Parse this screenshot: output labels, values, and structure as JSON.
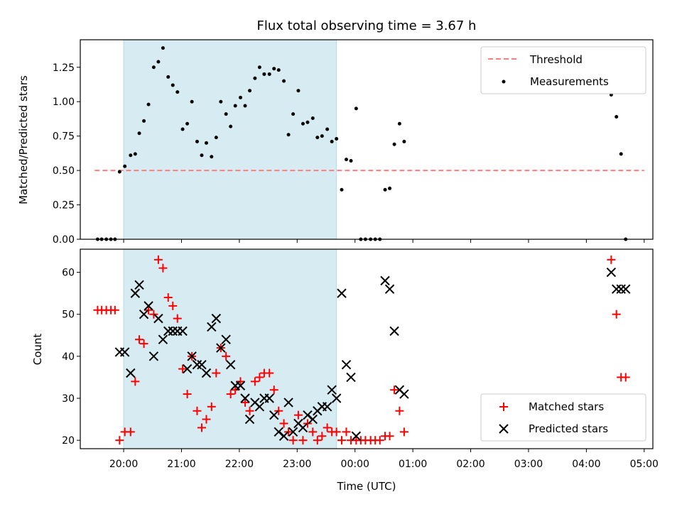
{
  "title": "Flux total observing time = 3.67 h",
  "colors": {
    "shade": "#add8e6",
    "threshold": "#ff7f7f",
    "matched": "#ff0000",
    "predicted": "#000000",
    "measure": "#000000"
  },
  "chart_data": [
    {
      "type": "scatter",
      "xlabel": "",
      "ylabel": "Matched/Predicted stars",
      "xlim": [
        19.25,
        29.15
      ],
      "ylim": [
        0,
        1.45
      ],
      "yticks": [
        "0.00",
        "0.25",
        "0.50",
        "0.75",
        "1.00",
        "1.25"
      ],
      "shaded_span": [
        20.0,
        23.68
      ],
      "threshold": {
        "label": "Threshold",
        "y": 0.5,
        "x": [
          19.5,
          29.0
        ]
      },
      "legend": [
        "Threshold",
        "Measurements"
      ],
      "series": [
        {
          "name": "Measurements",
          "marker": "dot",
          "points": [
            [
              19.55,
              0
            ],
            [
              19.62,
              0
            ],
            [
              19.7,
              0
            ],
            [
              19.78,
              0
            ],
            [
              19.85,
              0
            ],
            [
              19.93,
              0.49
            ],
            [
              20.02,
              0.53
            ],
            [
              20.12,
              0.61
            ],
            [
              20.2,
              0.62
            ],
            [
              20.27,
              0.77
            ],
            [
              20.35,
              0.86
            ],
            [
              20.43,
              0.98
            ],
            [
              20.52,
              1.25
            ],
            [
              20.6,
              1.29
            ],
            [
              20.68,
              1.39
            ],
            [
              20.77,
              1.18
            ],
            [
              20.85,
              1.12
            ],
            [
              20.93,
              1.07
            ],
            [
              21.02,
              0.8
            ],
            [
              21.1,
              0.84
            ],
            [
              21.18,
              1.0
            ],
            [
              21.27,
              0.71
            ],
            [
              21.35,
              0.61
            ],
            [
              21.43,
              0.7
            ],
            [
              21.52,
              0.6
            ],
            [
              21.6,
              0.74
            ],
            [
              21.68,
              1.0
            ],
            [
              21.77,
              0.91
            ],
            [
              21.85,
              0.82
            ],
            [
              21.93,
              0.97
            ],
            [
              22.02,
              1.03
            ],
            [
              22.1,
              0.97
            ],
            [
              22.18,
              1.08
            ],
            [
              22.27,
              1.17
            ],
            [
              22.35,
              1.25
            ],
            [
              22.43,
              1.2
            ],
            [
              22.52,
              1.2
            ],
            [
              22.6,
              1.24
            ],
            [
              22.68,
              1.23
            ],
            [
              22.77,
              1.15
            ],
            [
              22.85,
              0.76
            ],
            [
              22.93,
              0.91
            ],
            [
              23.02,
              1.08
            ],
            [
              23.1,
              0.84
            ],
            [
              23.18,
              0.85
            ],
            [
              23.27,
              0.88
            ],
            [
              23.35,
              0.74
            ],
            [
              23.43,
              0.75
            ],
            [
              23.52,
              0.8
            ],
            [
              23.6,
              0.71
            ],
            [
              23.68,
              0.73
            ],
            [
              23.77,
              0.36
            ],
            [
              23.85,
              0.58
            ],
            [
              23.93,
              0.57
            ],
            [
              24.02,
              0.95
            ],
            [
              24.1,
              0
            ],
            [
              24.18,
              0
            ],
            [
              24.27,
              0
            ],
            [
              24.35,
              0
            ],
            [
              24.43,
              0
            ],
            [
              24.52,
              0.36
            ],
            [
              24.6,
              0.37
            ],
            [
              24.68,
              0.69
            ],
            [
              24.77,
              0.84
            ],
            [
              24.85,
              0.71
            ],
            [
              28.43,
              1.05
            ],
            [
              28.52,
              0.89
            ],
            [
              28.6,
              0.62
            ],
            [
              28.68,
              0
            ]
          ]
        }
      ]
    },
    {
      "type": "scatter",
      "xlabel": "Time (UTC)",
      "ylabel": "Count",
      "xlim": [
        19.25,
        29.15
      ],
      "ylim": [
        18.0,
        65.5
      ],
      "yticks": [
        "20",
        "30",
        "40",
        "50",
        "60"
      ],
      "xticks": [
        "20:00",
        "21:00",
        "22:00",
        "23:00",
        "00:00",
        "01:00",
        "02:00",
        "03:00",
        "04:00",
        "05:00"
      ],
      "shaded_span": [
        20.0,
        23.68
      ],
      "legend": [
        "Matched stars",
        "Predicted stars"
      ],
      "series": [
        {
          "name": "Matched stars",
          "marker": "plus",
          "points": [
            [
              19.55,
              51
            ],
            [
              19.62,
              51
            ],
            [
              19.7,
              51
            ],
            [
              19.78,
              51
            ],
            [
              19.85,
              51
            ],
            [
              19.93,
              20
            ],
            [
              20.02,
              22
            ],
            [
              20.12,
              22
            ],
            [
              20.2,
              34
            ],
            [
              20.27,
              44
            ],
            [
              20.35,
              43
            ],
            [
              20.43,
              51
            ],
            [
              20.52,
              50
            ],
            [
              20.6,
              63
            ],
            [
              20.68,
              61
            ],
            [
              20.77,
              54
            ],
            [
              20.85,
              52
            ],
            [
              20.93,
              49
            ],
            [
              21.02,
              37
            ],
            [
              21.1,
              31
            ],
            [
              21.18,
              40
            ],
            [
              21.27,
              27
            ],
            [
              21.35,
              23
            ],
            [
              21.43,
              25
            ],
            [
              21.52,
              28
            ],
            [
              21.6,
              36
            ],
            [
              21.68,
              42
            ],
            [
              21.77,
              40
            ],
            [
              21.85,
              31
            ],
            [
              21.93,
              32
            ],
            [
              22.02,
              34
            ],
            [
              22.1,
              29
            ],
            [
              22.18,
              27
            ],
            [
              22.27,
              34
            ],
            [
              22.35,
              35
            ],
            [
              22.43,
              36
            ],
            [
              22.52,
              36
            ],
            [
              22.6,
              32
            ],
            [
              22.68,
              27
            ],
            [
              22.77,
              24
            ],
            [
              22.85,
              22
            ],
            [
              22.93,
              20
            ],
            [
              23.02,
              26
            ],
            [
              23.1,
              20
            ],
            [
              23.18,
              24
            ],
            [
              23.27,
              22
            ],
            [
              23.35,
              20
            ],
            [
              23.43,
              21
            ],
            [
              23.52,
              23
            ],
            [
              23.6,
              22
            ],
            [
              23.68,
              22
            ],
            [
              23.77,
              20
            ],
            [
              23.85,
              22
            ],
            [
              23.93,
              20
            ],
            [
              24.02,
              20
            ],
            [
              24.1,
              20
            ],
            [
              24.18,
              20
            ],
            [
              24.27,
              20
            ],
            [
              24.35,
              20
            ],
            [
              24.43,
              20
            ],
            [
              24.52,
              21
            ],
            [
              24.6,
              21
            ],
            [
              24.68,
              32
            ],
            [
              24.77,
              27
            ],
            [
              24.85,
              22
            ],
            [
              28.43,
              63
            ],
            [
              28.52,
              50
            ],
            [
              28.6,
              35
            ],
            [
              28.68,
              35
            ]
          ]
        },
        {
          "name": "Predicted stars",
          "marker": "x",
          "points": [
            [
              19.93,
              41
            ],
            [
              20.02,
              41
            ],
            [
              20.12,
              36
            ],
            [
              20.2,
              55
            ],
            [
              20.27,
              57
            ],
            [
              20.35,
              50
            ],
            [
              20.43,
              52
            ],
            [
              20.52,
              40
            ],
            [
              20.6,
              49
            ],
            [
              20.68,
              44
            ],
            [
              20.77,
              46
            ],
            [
              20.85,
              46
            ],
            [
              20.93,
              46
            ],
            [
              21.02,
              46
            ],
            [
              21.1,
              37
            ],
            [
              21.18,
              40
            ],
            [
              21.27,
              38
            ],
            [
              21.35,
              38
            ],
            [
              21.43,
              36
            ],
            [
              21.52,
              47
            ],
            [
              21.6,
              49
            ],
            [
              21.68,
              42
            ],
            [
              21.77,
              44
            ],
            [
              21.85,
              38
            ],
            [
              21.93,
              33
            ],
            [
              22.02,
              33
            ],
            [
              22.1,
              30
            ],
            [
              22.18,
              25
            ],
            [
              22.27,
              29
            ],
            [
              22.35,
              28
            ],
            [
              22.43,
              30
            ],
            [
              22.52,
              30
            ],
            [
              22.6,
              26
            ],
            [
              22.68,
              22
            ],
            [
              22.77,
              21
            ],
            [
              22.85,
              29
            ],
            [
              22.93,
              22
            ],
            [
              23.02,
              24
            ],
            [
              23.1,
              23
            ],
            [
              23.18,
              26
            ],
            [
              23.27,
              25
            ],
            [
              23.35,
              27
            ],
            [
              23.43,
              28
            ],
            [
              23.52,
              28
            ],
            [
              23.6,
              32
            ],
            [
              23.68,
              30
            ],
            [
              23.77,
              55
            ],
            [
              23.85,
              38
            ],
            [
              23.93,
              35
            ],
            [
              24.02,
              21
            ],
            [
              24.52,
              58
            ],
            [
              24.6,
              56
            ],
            [
              24.68,
              46
            ],
            [
              24.77,
              32
            ],
            [
              24.85,
              31
            ],
            [
              28.43,
              60
            ],
            [
              28.52,
              56
            ],
            [
              28.6,
              56
            ],
            [
              28.68,
              56
            ]
          ]
        }
      ]
    }
  ]
}
